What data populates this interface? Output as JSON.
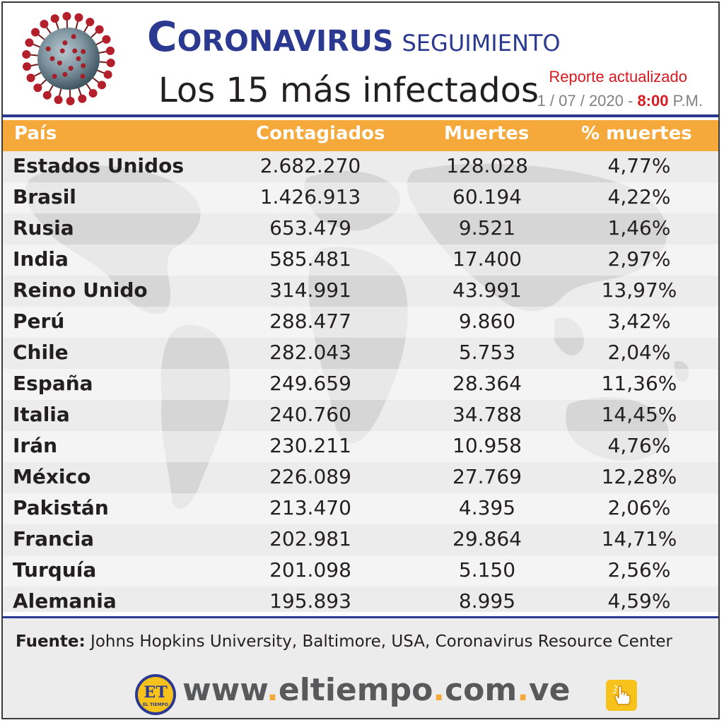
{
  "header": {
    "title_word1": "Coronavirus",
    "title_word2": "seguimiento",
    "subtitle": "Los 15 más infectados",
    "report_label": "Reporte actualizado",
    "report_date": "1 / 07 / 2020 - ",
    "report_time": "8:00",
    "report_ampm": " P.M.",
    "icons": [
      "coronavirus-icon"
    ]
  },
  "colors": {
    "title": "#2b3990",
    "header_bar": "#f6a93b",
    "accent_red": "#d71920",
    "rule": "#2b3990"
  },
  "chart_data": {
    "type": "table",
    "columns": [
      "País",
      "Contagiados",
      "Muertes",
      "% muertes"
    ],
    "rows": [
      {
        "country": "Estados Unidos",
        "cases": "2.682.270",
        "deaths": "128.028",
        "pct": "4,77%"
      },
      {
        "country": "Brasil",
        "cases": "1.426.913",
        "deaths": "60.194",
        "pct": "4,22%"
      },
      {
        "country": "Rusia",
        "cases": "653.479",
        "deaths": "9.521",
        "pct": "1,46%"
      },
      {
        "country": "India",
        "cases": "585.481",
        "deaths": "17.400",
        "pct": "2,97%"
      },
      {
        "country": "Reino Unido",
        "cases": "314.991",
        "deaths": "43.991",
        "pct": "13,97%"
      },
      {
        "country": "Perú",
        "cases": "288.477",
        "deaths": "9.860",
        "pct": "3,42%"
      },
      {
        "country": "Chile",
        "cases": "282.043",
        "deaths": "5.753",
        "pct": "2,04%"
      },
      {
        "country": "España",
        "cases": "249.659",
        "deaths": "28.364",
        "pct": "11,36%"
      },
      {
        "country": "Italia",
        "cases": "240.760",
        "deaths": "34.788",
        "pct": "14,45%"
      },
      {
        "country": "Irán",
        "cases": "230.211",
        "deaths": "10.958",
        "pct": "4,76%"
      },
      {
        "country": "México",
        "cases": "226.089",
        "deaths": "27.769",
        "pct": "12,28%"
      },
      {
        "country": "Pakistán",
        "cases": "213.470",
        "deaths": "4.395",
        "pct": "2,06%"
      },
      {
        "country": "Francia",
        "cases": "202.981",
        "deaths": "29.864",
        "pct": "14,71%"
      },
      {
        "country": "Turquía",
        "cases": "201.098",
        "deaths": "5.150",
        "pct": "2,56%"
      },
      {
        "country": "Alemania",
        "cases": "195.893",
        "deaths": "8.995",
        "pct": "4,59%"
      }
    ]
  },
  "footer": {
    "source_label": "Fuente:",
    "source_text": " Johns Hopkins University, Baltimore, USA, Coronavirus Resource Center",
    "logo_text": "ET",
    "logo_subtext": "EL TIEMPO",
    "site_parts": [
      "www",
      ".",
      "eltiempo",
      ".",
      "com",
      ".",
      "ve"
    ],
    "icons": [
      "eltiempo-logo-icon",
      "pointer-hand-icon"
    ]
  }
}
